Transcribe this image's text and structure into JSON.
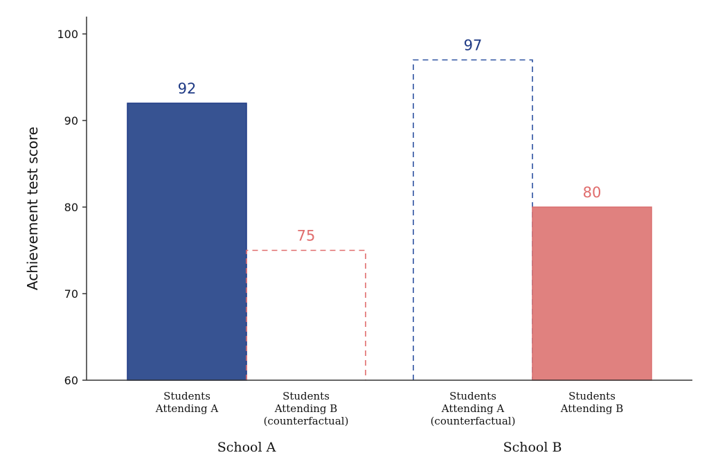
{
  "chart_data": {
    "type": "bar",
    "ylabel": "Achievement test score",
    "xlabel": "",
    "ylim": [
      60,
      100
    ],
    "yticks": [
      60,
      70,
      80,
      90,
      100
    ],
    "grid": false,
    "groups": [
      {
        "label": "School A",
        "bars": [
          {
            "label_lines": [
              "Students",
              "Attending A"
            ],
            "value": 92,
            "style": "solid",
            "color": "#375392",
            "label_color": "#1f3a85"
          },
          {
            "label_lines": [
              "Students",
              "Attending B",
              "(counterfactual)"
            ],
            "value": 75,
            "style": "dashed",
            "color": "#e06c6c",
            "label_color": "#e06c6c"
          }
        ]
      },
      {
        "label": "School B",
        "bars": [
          {
            "label_lines": [
              "Students",
              "Attending A",
              "(counterfactual)"
            ],
            "value": 97,
            "style": "dashed",
            "color": "#2b50a0",
            "label_color": "#1f3a85"
          },
          {
            "label_lines": [
              "Students",
              "Attending B"
            ],
            "value": 80,
            "style": "solid",
            "color": "#e0817f",
            "label_color": "#e06c6c"
          }
        ]
      }
    ]
  }
}
